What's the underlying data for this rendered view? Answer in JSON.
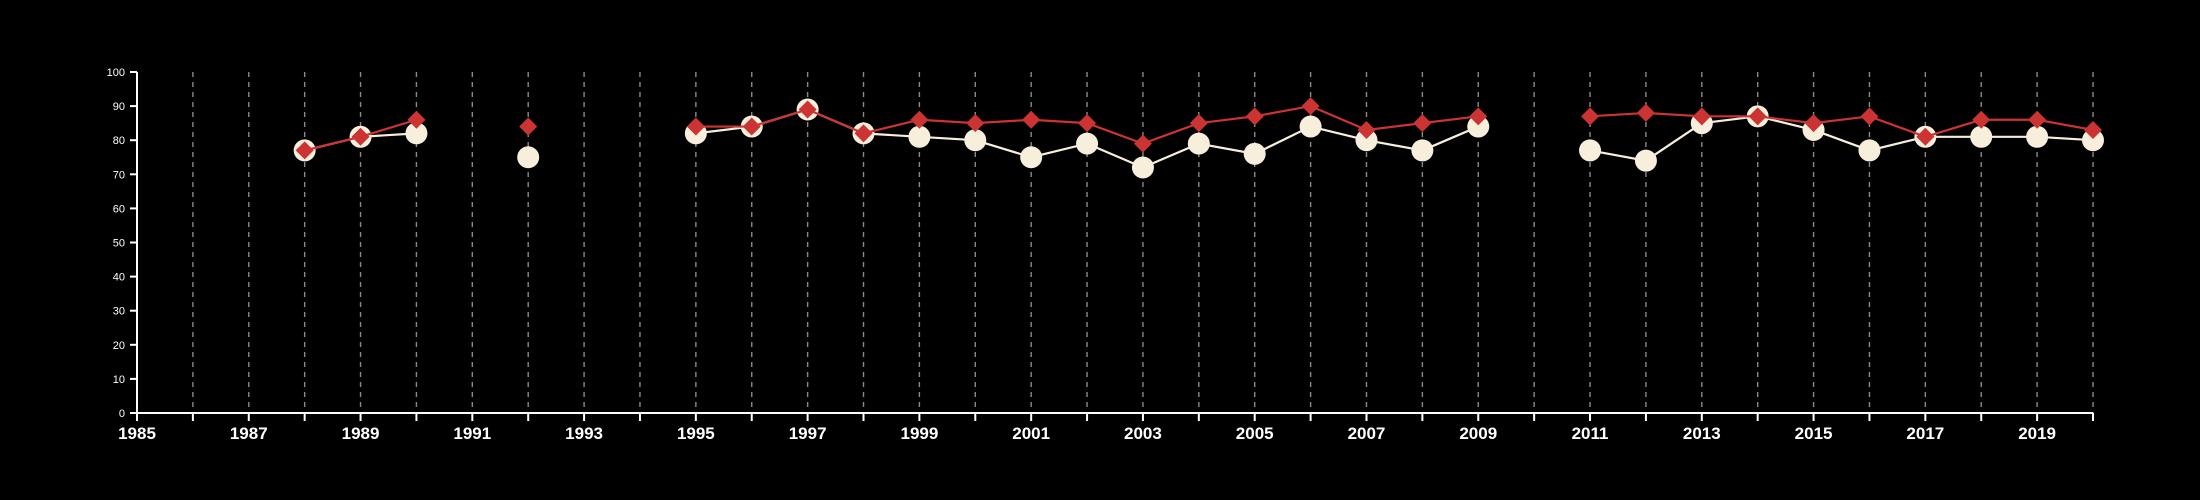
{
  "chart_data": {
    "type": "line",
    "title": "",
    "xlabel": "",
    "ylabel": "",
    "xlim": [
      1985,
      2020
    ],
    "ylim": [
      0,
      100
    ],
    "y_ticks": [
      0,
      10,
      20,
      30,
      40,
      50,
      60,
      70,
      80,
      90,
      100
    ],
    "x_tick_labels": [
      1985,
      1987,
      1989,
      1991,
      1993,
      1995,
      1997,
      1999,
      2001,
      2003,
      2005,
      2007,
      2009,
      2011,
      2013,
      2015,
      2017,
      2019
    ],
    "vertical_dashed_grid": true,
    "background": "#000000",
    "series": [
      {
        "marker": "circle",
        "color": "#f8eedc",
        "points": [
          [
            1988,
            77
          ],
          [
            1989,
            81
          ],
          [
            1990,
            82
          ],
          [
            1992,
            75
          ],
          [
            1995,
            82
          ],
          [
            1996,
            84
          ],
          [
            1997,
            89
          ],
          [
            1998,
            82
          ],
          [
            1999,
            81
          ],
          [
            2000,
            80
          ],
          [
            2001,
            75
          ],
          [
            2002,
            79
          ],
          [
            2003,
            72
          ],
          [
            2004,
            79
          ],
          [
            2005,
            76
          ],
          [
            2006,
            84
          ],
          [
            2007,
            80
          ],
          [
            2008,
            77
          ],
          [
            2009,
            84
          ],
          [
            2011,
            77
          ],
          [
            2012,
            74
          ],
          [
            2013,
            85
          ],
          [
            2014,
            87
          ],
          [
            2015,
            83
          ],
          [
            2016,
            77
          ],
          [
            2017,
            81
          ],
          [
            2018,
            81
          ],
          [
            2019,
            81
          ],
          [
            2020,
            80
          ]
        ]
      },
      {
        "marker": "diamond",
        "color": "#cc3333",
        "points": [
          [
            1988,
            77
          ],
          [
            1989,
            81
          ],
          [
            1990,
            86
          ],
          [
            1992,
            84
          ],
          [
            1995,
            84
          ],
          [
            1996,
            84
          ],
          [
            1997,
            89
          ],
          [
            1998,
            82
          ],
          [
            1999,
            86
          ],
          [
            2000,
            85
          ],
          [
            2001,
            86
          ],
          [
            2002,
            85
          ],
          [
            2003,
            79
          ],
          [
            2004,
            85
          ],
          [
            2005,
            87
          ],
          [
            2006,
            90
          ],
          [
            2007,
            83
          ],
          [
            2008,
            85
          ],
          [
            2009,
            87
          ],
          [
            2011,
            87
          ],
          [
            2012,
            88
          ],
          [
            2013,
            87
          ],
          [
            2014,
            87
          ],
          [
            2015,
            85
          ],
          [
            2016,
            87
          ],
          [
            2017,
            81
          ],
          [
            2018,
            86
          ],
          [
            2019,
            86
          ],
          [
            2020,
            83
          ]
        ]
      }
    ]
  }
}
